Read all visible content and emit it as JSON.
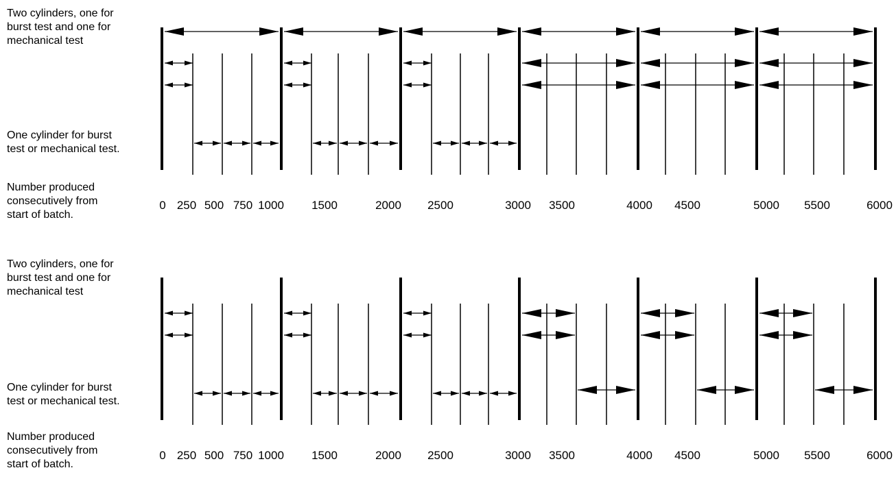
{
  "panels": [
    {
      "label_two": "Two cylinders, one for\nburst test and one for\nmechanical test",
      "label_one": "One cylinder for burst\ntest or mechanical test.",
      "label_number": "Number produced\nconsecutively from\nstart of batch."
    },
    {
      "label_two": "Two cylinders, one for\nburst test and one for\nmechanical test",
      "label_one": "One cylinder for burst\ntest or mechanical test.",
      "label_number": "Number produced\nconsecutively from\nstart of batch."
    }
  ],
  "ticks": [
    "0",
    "250",
    "500",
    "750",
    "1000",
    "1500",
    "2000",
    "2500",
    "3000",
    "3500",
    "4000",
    "4500",
    "5000",
    "5500",
    "6000"
  ]
}
